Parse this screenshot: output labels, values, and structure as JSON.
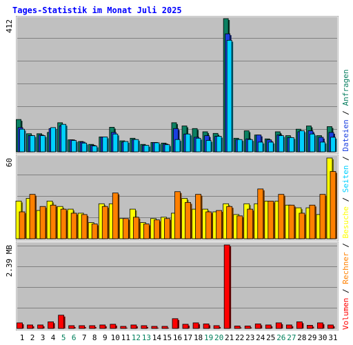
{
  "chart_data": {
    "type": "bar",
    "title": "Tages-Statistik im Monat Juli 2025",
    "categories": [
      "1",
      "2",
      "3",
      "4",
      "5",
      "6",
      "7",
      "8",
      "9",
      "10",
      "11",
      "12",
      "13",
      "14",
      "15",
      "16",
      "17",
      "18",
      "19",
      "20",
      "21",
      "22",
      "23",
      "24",
      "25",
      "26",
      "27",
      "28",
      "29",
      "30",
      "31"
    ],
    "weekend_days": [
      "5",
      "6",
      "12",
      "13",
      "19",
      "20",
      "26",
      "27"
    ],
    "panels": {
      "requests": {
        "max_label": "412",
        "ylim": [
          0,
          412
        ],
        "series": [
          {
            "name": "Anfragen",
            "color": "#0b8062",
            "values": [
              100,
              56,
              56,
              60,
              90,
              37,
              32,
              23,
              46,
              76,
              34,
              42,
              23,
              29,
              27,
              90,
              80,
              72,
              62,
              57,
              412,
              42,
              65,
              52,
              40,
              62,
              50,
              70,
              80,
              50,
              78
            ]
          },
          {
            "name": "Dateien",
            "color": "#1a3fe0",
            "values": [
              75,
              50,
              52,
              72,
              80,
              37,
              30,
              20,
              46,
              60,
              30,
              38,
              20,
              29,
              24,
              72,
              55,
              45,
              50,
              48,
              365,
              38,
              40,
              52,
              37,
              52,
              44,
              62,
              65,
              45,
              60
            ]
          },
          {
            "name": "Seiten",
            "color": "#00d0ff",
            "values": [
              70,
              50,
              50,
              75,
              85,
              35,
              27,
              18,
              46,
              55,
              32,
              38,
              20,
              28,
              22,
              38,
              55,
              42,
              35,
              48,
              345,
              38,
              38,
              30,
              30,
              50,
              44,
              65,
              55,
              30,
              45
            ]
          }
        ]
      },
      "visits": {
        "max_label": "60",
        "ylim": [
          0,
          60
        ],
        "series": [
          {
            "name": "Besuche",
            "color": "#ffff00",
            "values": [
              28,
              30,
              21,
              28,
              24,
              22,
              19,
              12,
              26,
              26,
              15,
              22,
              12,
              15,
              16,
              19,
              30,
              22,
              22,
              20,
              26,
              18,
              26,
              26,
              28,
              28,
              25,
              23,
              23,
              18,
              60
            ]
          },
          {
            "name": "Rechner",
            "color": "#ff8000",
            "values": [
              20,
              33,
              24,
              25,
              22,
              19,
              18,
              11,
              24,
              34,
              15,
              16,
              11,
              14,
              15,
              35,
              27,
              33,
              20,
              21,
              24,
              17,
              22,
              37,
              28,
              33,
              25,
              19,
              25,
              33,
              50
            ]
          }
        ]
      },
      "volume": {
        "max_label": "2.39 MB",
        "ylim": [
          0,
          2.39
        ],
        "series": [
          {
            "name": "Volumen",
            "color": "#ff0000",
            "values": [
              0.16,
              0.1,
              0.1,
              0.19,
              0.38,
              0.08,
              0.08,
              0.08,
              0.1,
              0.12,
              0.06,
              0.1,
              0.08,
              0.06,
              0.06,
              0.28,
              0.12,
              0.16,
              0.13,
              0.08,
              2.39,
              0.07,
              0.07,
              0.13,
              0.1,
              0.16,
              0.1,
              0.19,
              0.09,
              0.16,
              0.1
            ]
          }
        ]
      }
    },
    "legend_right": [
      {
        "label": "Anfragen",
        "color": "#0b8062"
      },
      {
        "label": "Dateien",
        "color": "#1a3fe0"
      },
      {
        "label": "Seiten",
        "color": "#00d0ff"
      },
      {
        "label": "Besuche",
        "color": "#ffff00"
      },
      {
        "label": "Rechner",
        "color": "#ff8000"
      },
      {
        "label": "Volumen",
        "color": "#ff0000"
      }
    ],
    "colors": {
      "title": "#0000ff",
      "weekday_label": "#000000",
      "weekend_label": "#00805c",
      "panel_bg": "#c0c0c0"
    }
  }
}
